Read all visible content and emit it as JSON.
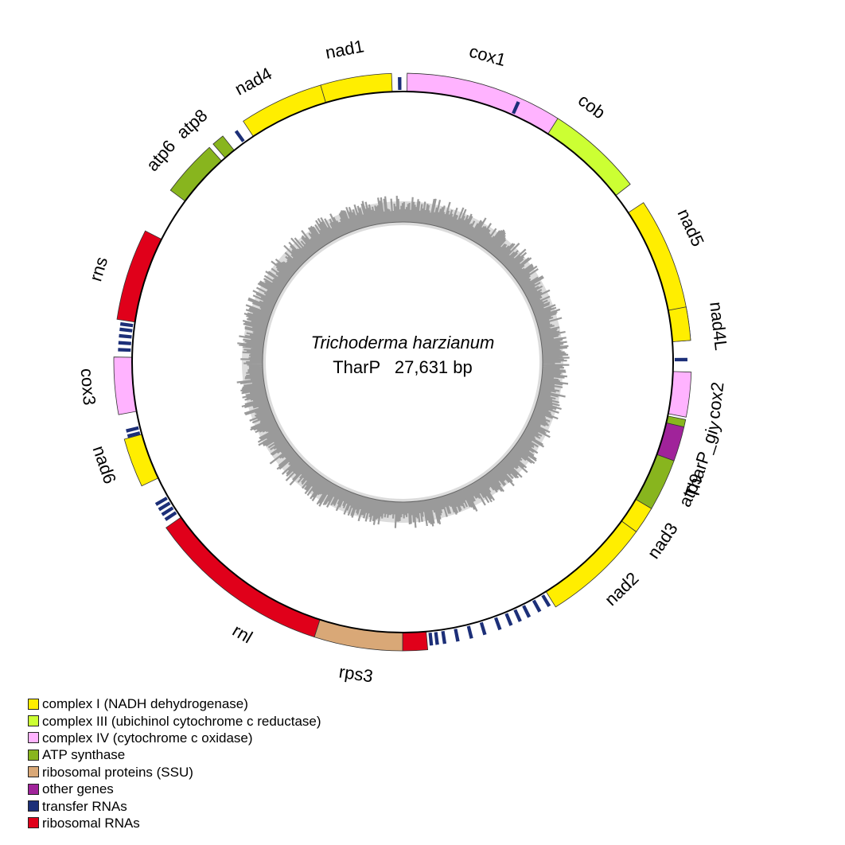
{
  "center": {
    "species": "Trichoderma harzianum",
    "strain": "TharP",
    "length_text": "27,631 bp"
  },
  "colors": {
    "complex_I": "#ffee00",
    "complex_III": "#ccff33",
    "complex_IV": "#ffb3ff",
    "atp": "#88b51e",
    "ribo_protein": "#d9a877",
    "other": "#a0239a",
    "trna": "#1c2f78",
    "rrna": "#e0001a",
    "gc_track": "#9a9a9a",
    "gc_bg": "#dcdcdc"
  },
  "genes": [
    {
      "name": "cox1",
      "cat": "complex_IV",
      "strand": "outer",
      "start": 0.9,
      "end": 52.0
    },
    {
      "name": "cob",
      "cat": "complex_III",
      "strand": "outer",
      "start": 32.5,
      "end": 52.0
    },
    {
      "name": "nad5",
      "cat": "complex_I",
      "strand": "outer",
      "start": 56.5,
      "end": 85.7
    },
    {
      "name": "nad4L",
      "cat": "complex_I",
      "strand": "outer",
      "start": 79.0,
      "end": 85.7
    },
    {
      "name": "cox2",
      "cat": "complex_IV",
      "strand": "outer",
      "start": 92.0,
      "end": 101.0
    },
    {
      "name": "",
      "cat": "atp",
      "strand": "outer",
      "start": 101.5,
      "end": 103.0
    },
    {
      "name": "TharP_giy",
      "cat": "other",
      "strand": "outer",
      "start": 103.0,
      "end": 110.0
    },
    {
      "name": "atp9",
      "cat": "atp",
      "strand": "outer",
      "start": 110.0,
      "end": 120.5
    },
    {
      "name": "nad3",
      "cat": "complex_I",
      "strand": "outer",
      "start": 120.5,
      "end": 126.0
    },
    {
      "name": "nad2",
      "cat": "complex_I",
      "strand": "outer",
      "start": 126.0,
      "end": 148.0
    },
    {
      "name": "rnl",
      "cat": "rrna",
      "strand": "outer",
      "start": 175.0,
      "end": 180.0
    },
    {
      "name": "rps3",
      "cat": "ribo_protein",
      "strand": "outer",
      "start": 180.0,
      "end": 197.8
    },
    {
      "name": "rnl",
      "cat": "rrna",
      "strand": "outer",
      "start": 197.8,
      "end": 235.0
    },
    {
      "name": "nad6",
      "cat": "complex_I",
      "strand": "outer",
      "start": 244.6,
      "end": 254.5
    },
    {
      "name": "cox3",
      "cat": "complex_IV",
      "strand": "outer",
      "start": 259.5,
      "end": 271.0
    },
    {
      "name": "rns",
      "cat": "rrna",
      "strand": "outer",
      "start": 278.5,
      "end": 297.0
    },
    {
      "name": "atp6",
      "cat": "atp",
      "strand": "outer",
      "start": 306.5,
      "end": 318.0
    },
    {
      "name": "atp8",
      "cat": "atp",
      "strand": "outer",
      "start": 319.0,
      "end": 321.5
    },
    {
      "name": "nad4",
      "cat": "complex_I",
      "strand": "outer",
      "start": 326.5,
      "end": 343.5
    },
    {
      "name": "nad1",
      "cat": "complex_I",
      "strand": "outer",
      "start": 343.5,
      "end": 357.8
    }
  ],
  "trnas": [
    {
      "angle": 359.4
    },
    {
      "angle": 24.0
    },
    {
      "angle": 89.5
    },
    {
      "angle": 149.0
    },
    {
      "angle": 151.2
    },
    {
      "angle": 153.6
    },
    {
      "angle": 155.6
    },
    {
      "angle": 157.6
    },
    {
      "angle": 160.0
    },
    {
      "angle": 163.2
    },
    {
      "angle": 166.0
    },
    {
      "angle": 168.8
    },
    {
      "angle": 171.5
    },
    {
      "angle": 173.0
    },
    {
      "angle": 174.2
    },
    {
      "angle": 236.4
    },
    {
      "angle": 237.6
    },
    {
      "angle": 238.8
    },
    {
      "angle": 240.0
    },
    {
      "angle": 254.9
    },
    {
      "angle": 256.0
    },
    {
      "angle": 272.5
    },
    {
      "angle": 273.9
    },
    {
      "angle": 275.3
    },
    {
      "angle": 276.6
    },
    {
      "angle": 277.7
    },
    {
      "angle": 324.2
    }
  ],
  "labels": [
    {
      "text": "cox1",
      "angle": 15.5
    },
    {
      "text": "cob",
      "angle": 36.5
    },
    {
      "text": "nad5",
      "angle": 65.0
    },
    {
      "text": "nad4L",
      "angle": 83.5
    },
    {
      "text": "cox2",
      "angle": 97.0
    },
    {
      "text": "TharP_giy",
      "angle": 108.0
    },
    {
      "text": "atp9",
      "angle": 114.0
    },
    {
      "text": "nad3",
      "angle": 124.5
    },
    {
      "text": "nad2",
      "angle": 136.0
    },
    {
      "text": "rps3",
      "angle": 188.5
    },
    {
      "text": "rnl",
      "angle": 210.5
    },
    {
      "text": "nad6",
      "angle": 251.0
    },
    {
      "text": "cox3",
      "angle": 265.5
    },
    {
      "text": "rns",
      "angle": 287.0
    },
    {
      "text": "atp6",
      "angle": 310.5
    },
    {
      "text": "atp8",
      "angle": 318.5
    },
    {
      "text": "nad4",
      "angle": 332.0
    },
    {
      "text": "nad1",
      "angle": 349.5
    }
  ],
  "legend": [
    {
      "label": "complex I (NADH dehydrogenase)",
      "color": "#ffee00"
    },
    {
      "label": "complex III (ubichinol cytochrome c reductase)",
      "color": "#ccff33"
    },
    {
      "label": "complex IV (cytochrome c oxidase)",
      "color": "#ffb3ff"
    },
    {
      "label": "ATP synthase",
      "color": "#88b51e"
    },
    {
      "label": "ribosomal proteins (SSU)",
      "color": "#d9a877"
    },
    {
      "label": "other genes",
      "color": "#a0239a"
    },
    {
      "label": "transfer RNAs",
      "color": "#1c2f78"
    },
    {
      "label": "ribosomal RNAs",
      "color": "#e0001a"
    }
  ]
}
